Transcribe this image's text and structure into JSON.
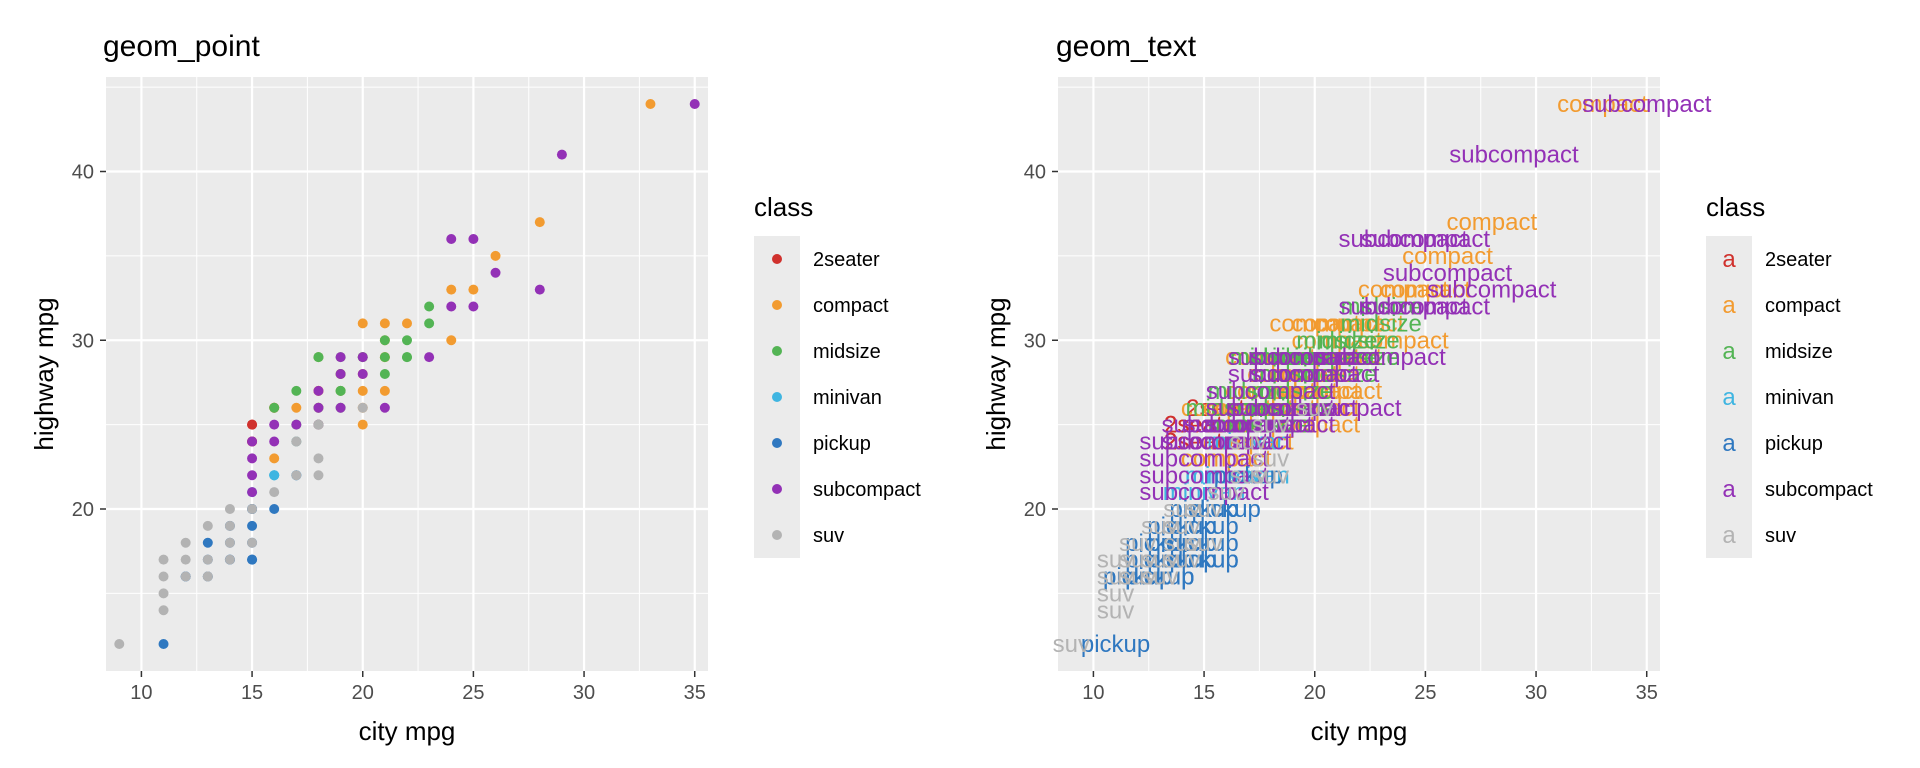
{
  "colors": {
    "2seater": "#d0312d",
    "compact": "#f29b30",
    "midsize": "#53b454",
    "minivan": "#3fb5e1",
    "pickup": "#2f78c0",
    "subcompact": "#9331b6",
    "suv": "#b3b3b3",
    "panel_bg": "#ebebeb",
    "grid_major": "#ffffff",
    "legend_key_bg": "#ebebeb"
  },
  "legend": {
    "title": "class",
    "glyph": "a",
    "position": "right",
    "classes": [
      "2seater",
      "compact",
      "midsize",
      "minivan",
      "pickup",
      "subcompact",
      "suv"
    ]
  },
  "chart_data": [
    {
      "type": "scatter",
      "title": "geom_point",
      "xlabel": "city mpg",
      "ylabel": "highway mpg",
      "xlim": [
        8.4,
        35.6
      ],
      "ylim": [
        10.4,
        45.6
      ],
      "xticks": [
        10,
        15,
        20,
        25,
        30,
        35
      ],
      "yticks": [
        20,
        30,
        40
      ],
      "grid": true,
      "legend_title": "class",
      "series": [
        {
          "name": "2seater",
          "points": [
            [
              15,
              25
            ],
            [
              15,
              24
            ],
            [
              16,
              26
            ],
            [
              15,
              25
            ],
            [
              15,
              24
            ]
          ]
        },
        {
          "name": "compact",
          "points": [
            [
              18,
              29
            ],
            [
              21,
              29
            ],
            [
              20,
              31
            ],
            [
              21,
              30
            ],
            [
              16,
              26
            ],
            [
              18,
              27
            ],
            [
              17,
              26
            ],
            [
              18,
              27
            ],
            [
              19,
              28
            ],
            [
              21,
              29
            ],
            [
              21,
              31
            ],
            [
              22,
              31
            ],
            [
              19,
              27
            ],
            [
              24,
              30
            ],
            [
              24,
              33
            ],
            [
              26,
              35
            ],
            [
              28,
              37
            ],
            [
              33,
              44
            ],
            [
              20,
              29
            ],
            [
              20,
              28
            ],
            [
              20,
              26
            ],
            [
              18,
              26
            ],
            [
              20,
              25
            ],
            [
              19,
              28
            ],
            [
              18,
              25
            ],
            [
              17,
              24
            ],
            [
              16,
              23
            ],
            [
              20,
              27
            ],
            [
              21,
              27
            ],
            [
              25,
              33
            ]
          ]
        },
        {
          "name": "midsize",
          "points": [
            [
              19,
              27
            ],
            [
              22,
              30
            ],
            [
              18,
              26
            ],
            [
              18,
              29
            ],
            [
              17,
              27
            ],
            [
              18,
              29
            ],
            [
              19,
              29
            ],
            [
              21,
              30
            ],
            [
              23,
              32
            ],
            [
              20,
              29
            ],
            [
              19,
              28
            ],
            [
              22,
              29
            ],
            [
              21,
              29
            ],
            [
              23,
              31
            ],
            [
              18,
              25
            ],
            [
              17,
              25
            ],
            [
              16,
              26
            ],
            [
              19,
              26
            ],
            [
              22,
              29
            ],
            [
              21,
              28
            ],
            [
              19,
              27
            ],
            [
              20,
              29
            ]
          ]
        },
        {
          "name": "minivan",
          "points": [
            [
              16,
              22
            ],
            [
              17,
              24
            ],
            [
              16,
              22
            ],
            [
              16,
              22
            ],
            [
              15,
              21
            ],
            [
              17,
              22
            ]
          ]
        },
        {
          "name": "pickup",
          "points": [
            [
              15,
              20
            ],
            [
              14,
              17
            ],
            [
              13,
              16
            ],
            [
              14,
              18
            ],
            [
              11,
              12
            ],
            [
              12,
              16
            ],
            [
              15,
              17
            ],
            [
              14,
              17
            ],
            [
              15,
              19
            ],
            [
              13,
              17
            ],
            [
              15,
              20
            ],
            [
              16,
              20
            ],
            [
              12,
              16
            ],
            [
              17,
              22
            ],
            [
              14,
              19
            ],
            [
              13,
              16
            ],
            [
              15,
              18
            ],
            [
              15,
              17
            ],
            [
              13,
              18
            ]
          ]
        },
        {
          "name": "subcompact",
          "points": [
            [
              18,
              26
            ],
            [
              18,
              25
            ],
            [
              19,
              26
            ],
            [
              15,
              21
            ],
            [
              15,
              22
            ],
            [
              15,
              23
            ],
            [
              16,
              24
            ],
            [
              15,
              24
            ],
            [
              19,
              29
            ],
            [
              16,
              25
            ],
            [
              20,
              29
            ],
            [
              24,
              32
            ],
            [
              25,
              32
            ],
            [
              26,
              34
            ],
            [
              28,
              33
            ],
            [
              23,
              29
            ],
            [
              24,
              36
            ],
            [
              25,
              36
            ],
            [
              29,
              41
            ],
            [
              35,
              44
            ],
            [
              20,
              28
            ],
            [
              21,
              26
            ],
            [
              19,
              28
            ],
            [
              18,
              27
            ],
            [
              17,
              25
            ]
          ]
        },
        {
          "name": "suv",
          "points": [
            [
              11,
              15
            ],
            [
              14,
              17
            ],
            [
              13,
              17
            ],
            [
              12,
              17
            ],
            [
              11,
              14
            ],
            [
              9,
              12
            ],
            [
              14,
              19
            ],
            [
              12,
              16
            ],
            [
              14,
              20
            ],
            [
              18,
              25
            ],
            [
              11,
              17
            ],
            [
              13,
              19
            ],
            [
              15,
              18
            ],
            [
              13,
              16
            ],
            [
              17,
              24
            ],
            [
              18,
              23
            ],
            [
              13,
              16
            ],
            [
              14,
              18
            ],
            [
              12,
              18
            ],
            [
              11,
              16
            ],
            [
              20,
              26
            ],
            [
              17,
              22
            ],
            [
              15,
              20
            ],
            [
              16,
              21
            ],
            [
              18,
              22
            ]
          ]
        }
      ]
    },
    {
      "type": "scatter",
      "title": "geom_text",
      "xlabel": "city mpg",
      "ylabel": "highway mpg",
      "xlim": [
        8.4,
        35.6
      ],
      "ylim": [
        10.4,
        45.6
      ],
      "xticks": [
        10,
        15,
        20,
        25,
        30,
        35
      ],
      "yticks": [
        20,
        30,
        40
      ],
      "grid": true,
      "legend_title": "class",
      "marker": "class label text",
      "series": [
        {
          "name": "2seater",
          "points": [
            [
              15,
              25
            ],
            [
              15,
              24
            ],
            [
              16,
              26
            ],
            [
              15,
              25
            ],
            [
              15,
              24
            ]
          ]
        },
        {
          "name": "compact",
          "points": [
            [
              18,
              29
            ],
            [
              21,
              29
            ],
            [
              20,
              31
            ],
            [
              21,
              30
            ],
            [
              16,
              26
            ],
            [
              18,
              27
            ],
            [
              17,
              26
            ],
            [
              18,
              27
            ],
            [
              19,
              28
            ],
            [
              21,
              29
            ],
            [
              21,
              31
            ],
            [
              22,
              31
            ],
            [
              19,
              27
            ],
            [
              24,
              30
            ],
            [
              24,
              33
            ],
            [
              26,
              35
            ],
            [
              28,
              37
            ],
            [
              33,
              44
            ],
            [
              20,
              29
            ],
            [
              20,
              28
            ],
            [
              20,
              26
            ],
            [
              18,
              26
            ],
            [
              20,
              25
            ],
            [
              19,
              28
            ],
            [
              18,
              25
            ],
            [
              17,
              24
            ],
            [
              16,
              23
            ],
            [
              20,
              27
            ],
            [
              21,
              27
            ],
            [
              25,
              33
            ]
          ]
        },
        {
          "name": "midsize",
          "points": [
            [
              19,
              27
            ],
            [
              22,
              30
            ],
            [
              18,
              26
            ],
            [
              18,
              29
            ],
            [
              17,
              27
            ],
            [
              18,
              29
            ],
            [
              19,
              29
            ],
            [
              21,
              30
            ],
            [
              23,
              32
            ],
            [
              20,
              29
            ],
            [
              19,
              28
            ],
            [
              22,
              29
            ],
            [
              21,
              29
            ],
            [
              23,
              31
            ],
            [
              18,
              25
            ],
            [
              17,
              25
            ],
            [
              16,
              26
            ],
            [
              19,
              26
            ],
            [
              22,
              29
            ],
            [
              21,
              28
            ],
            [
              19,
              27
            ],
            [
              20,
              29
            ]
          ]
        },
        {
          "name": "minivan",
          "points": [
            [
              16,
              22
            ],
            [
              17,
              24
            ],
            [
              16,
              22
            ],
            [
              16,
              22
            ],
            [
              15,
              21
            ],
            [
              17,
              22
            ]
          ]
        },
        {
          "name": "pickup",
          "points": [
            [
              15,
              20
            ],
            [
              14,
              17
            ],
            [
              13,
              16
            ],
            [
              14,
              18
            ],
            [
              11,
              12
            ],
            [
              12,
              16
            ],
            [
              15,
              17
            ],
            [
              14,
              17
            ],
            [
              15,
              19
            ],
            [
              13,
              17
            ],
            [
              15,
              20
            ],
            [
              16,
              20
            ],
            [
              12,
              16
            ],
            [
              17,
              22
            ],
            [
              14,
              19
            ],
            [
              13,
              16
            ],
            [
              15,
              18
            ],
            [
              15,
              17
            ],
            [
              13,
              18
            ]
          ]
        },
        {
          "name": "subcompact",
          "points": [
            [
              18,
              26
            ],
            [
              18,
              25
            ],
            [
              19,
              26
            ],
            [
              15,
              21
            ],
            [
              15,
              22
            ],
            [
              15,
              23
            ],
            [
              16,
              24
            ],
            [
              15,
              24
            ],
            [
              19,
              29
            ],
            [
              16,
              25
            ],
            [
              20,
              29
            ],
            [
              24,
              32
            ],
            [
              25,
              32
            ],
            [
              26,
              34
            ],
            [
              28,
              33
            ],
            [
              23,
              29
            ],
            [
              24,
              36
            ],
            [
              25,
              36
            ],
            [
              29,
              41
            ],
            [
              35,
              44
            ],
            [
              20,
              28
            ],
            [
              21,
              26
            ],
            [
              19,
              28
            ],
            [
              18,
              27
            ],
            [
              17,
              25
            ]
          ]
        },
        {
          "name": "suv",
          "points": [
            [
              11,
              15
            ],
            [
              14,
              17
            ],
            [
              13,
              17
            ],
            [
              12,
              17
            ],
            [
              11,
              14
            ],
            [
              9,
              12
            ],
            [
              14,
              19
            ],
            [
              12,
              16
            ],
            [
              14,
              20
            ],
            [
              18,
              25
            ],
            [
              11,
              17
            ],
            [
              13,
              19
            ],
            [
              15,
              18
            ],
            [
              13,
              16
            ],
            [
              17,
              24
            ],
            [
              18,
              23
            ],
            [
              13,
              16
            ],
            [
              14,
              18
            ],
            [
              12,
              18
            ],
            [
              11,
              16
            ],
            [
              20,
              26
            ],
            [
              17,
              22
            ],
            [
              15,
              20
            ],
            [
              16,
              21
            ],
            [
              18,
              22
            ]
          ]
        }
      ]
    }
  ]
}
